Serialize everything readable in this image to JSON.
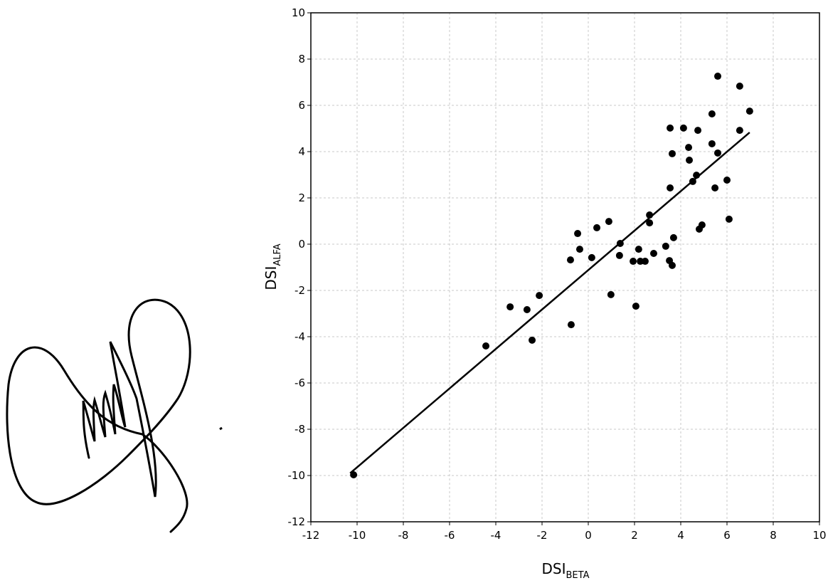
{
  "chart_data": {
    "type": "scatter",
    "x_label": {
      "main": "DSI",
      "sub": "BETA"
    },
    "y_label": {
      "main": "DSI",
      "sub": "ALFA"
    },
    "xlim": [
      -12,
      10
    ],
    "ylim": [
      -12,
      10
    ],
    "xticks": [
      -12,
      -10,
      -8,
      -6,
      -4,
      -2,
      0,
      2,
      4,
      6,
      8,
      10
    ],
    "yticks": [
      -12,
      -10,
      -8,
      -6,
      -4,
      -2,
      0,
      2,
      4,
      6,
      8,
      10
    ],
    "grid": true,
    "color": "#000000",
    "x": [
      -10.15,
      -4.43,
      -3.38,
      -2.65,
      -2.43,
      -2.12,
      -0.74,
      -0.77,
      -0.46,
      -0.37,
      0.15,
      0.37,
      0.89,
      0.98,
      1.38,
      1.35,
      1.94,
      2.06,
      2.18,
      2.25,
      2.46,
      2.65,
      2.65,
      2.83,
      3.35,
      3.51,
      3.63,
      3.69,
      3.54,
      3.54,
      3.63,
      4.12,
      4.34,
      4.37,
      4.52,
      4.68,
      4.74,
      4.8,
      4.92,
      5.35,
      5.35,
      5.48,
      5.6,
      5.6,
      6.0,
      6.09,
      6.55,
      6.55,
      6.98
    ],
    "values": [
      -9.97,
      -4.4,
      -2.71,
      -2.83,
      -4.15,
      -2.22,
      -3.48,
      -0.68,
      0.46,
      -0.22,
      -0.58,
      0.71,
      0.98,
      -2.18,
      0.03,
      -0.49,
      -0.74,
      -2.68,
      -0.22,
      -0.74,
      -0.74,
      1.26,
      0.92,
      -0.4,
      -0.09,
      -0.71,
      -0.92,
      0.28,
      2.43,
      5.02,
      3.91,
      5.02,
      4.18,
      3.63,
      2.71,
      2.98,
      4.92,
      0.65,
      0.83,
      5.63,
      4.34,
      2.43,
      3.94,
      7.26,
      2.77,
      1.08,
      6.83,
      4.92,
      5.75
    ],
    "trend_line": {
      "x": [
        -10.3,
        6.98
      ],
      "values": [
        -9.9,
        4.83
      ]
    }
  }
}
